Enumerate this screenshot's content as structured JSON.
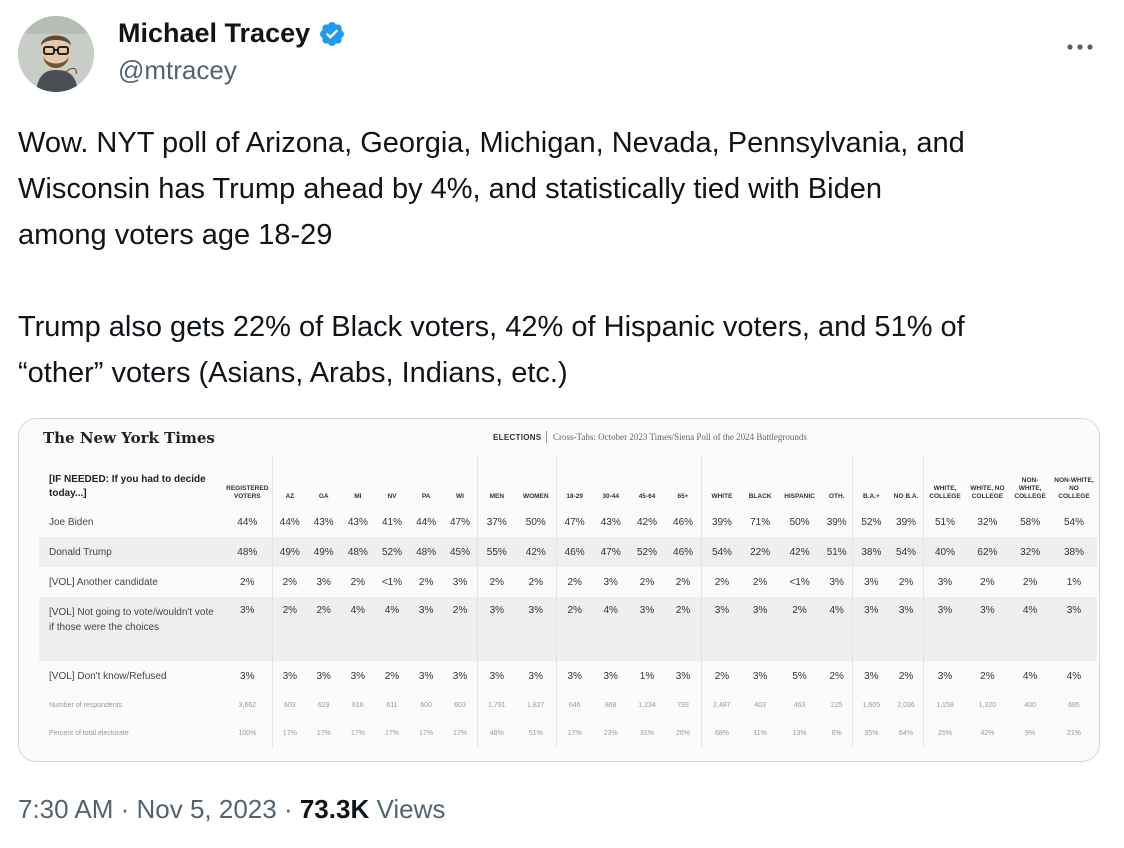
{
  "author": {
    "name": "Michael Tracey",
    "handle": "@mtracey",
    "avatar_icon": "avatar-illustration",
    "verified_icon": "verified-badge-icon",
    "verified_color": "#1d9bf0"
  },
  "more_icon": "more-options-icon",
  "tweet": {
    "line1": "Wow. NYT poll of Arizona, Georgia, Michigan, Nevada, Pennsylvania, and",
    "line2": "Wisconsin has Trump ahead by 4%, and statistically tied with Biden",
    "line3": "among voters age 18-29",
    "line4": "Trump also gets 22% of Black voters, 42% of Hispanic voters, and 51% of",
    "line5": "“other” voters (Asians, Arabs, Indians, etc.)"
  },
  "media": {
    "logo": "The New York Times",
    "section": "ELECTIONS",
    "title": "Cross-Tabs: October 2023 Times/Siena Poll of the 2024 Battlegrounds",
    "question": "[IF NEEDED: If you had to decide today...]",
    "columns": [
      "REGISTERED VOTERS",
      "AZ",
      "GA",
      "MI",
      "NV",
      "PA",
      "WI",
      "MEN",
      "WOMEN",
      "18-29",
      "30-44",
      "45-64",
      "65+",
      "WHITE",
      "BLACK",
      "HISPANIC",
      "OTH.",
      "B.A.+",
      "NO B.A.",
      "WHITE, COLLEGE",
      "WHITE, NO COLLEGE",
      "NON-WHITE, COLLEGE",
      "NON-WHITE, NO COLLEGE"
    ],
    "rows": [
      {
        "label": "Joe Biden",
        "values": [
          "44%",
          "44%",
          "43%",
          "43%",
          "41%",
          "44%",
          "47%",
          "37%",
          "50%",
          "47%",
          "43%",
          "42%",
          "46%",
          "39%",
          "71%",
          "50%",
          "39%",
          "52%",
          "39%",
          "51%",
          "32%",
          "58%",
          "54%"
        ]
      },
      {
        "label": "Donald Trump",
        "values": [
          "48%",
          "49%",
          "49%",
          "48%",
          "52%",
          "48%",
          "45%",
          "55%",
          "42%",
          "46%",
          "47%",
          "52%",
          "46%",
          "54%",
          "22%",
          "42%",
          "51%",
          "38%",
          "54%",
          "40%",
          "62%",
          "32%",
          "38%"
        ]
      },
      {
        "label": "[VOL] Another candidate",
        "values": [
          "2%",
          "2%",
          "3%",
          "2%",
          "<1%",
          "2%",
          "3%",
          "2%",
          "2%",
          "2%",
          "3%",
          "2%",
          "2%",
          "2%",
          "2%",
          "<1%",
          "3%",
          "3%",
          "2%",
          "3%",
          "2%",
          "2%",
          "1%"
        ]
      },
      {
        "label": "[VOL] Not going to vote/wouldn't vote if those were the choices",
        "values": [
          "3%",
          "2%",
          "2%",
          "4%",
          "4%",
          "3%",
          "2%",
          "3%",
          "3%",
          "2%",
          "4%",
          "3%",
          "2%",
          "3%",
          "3%",
          "2%",
          "4%",
          "3%",
          "3%",
          "3%",
          "3%",
          "4%",
          "3%"
        ]
      },
      {
        "label": "[VOL] Don't know/Refused",
        "values": [
          "3%",
          "3%",
          "3%",
          "3%",
          "2%",
          "3%",
          "3%",
          "3%",
          "3%",
          "3%",
          "3%",
          "1%",
          "3%",
          "2%",
          "3%",
          "5%",
          "2%",
          "3%",
          "2%",
          "3%",
          "2%",
          "4%",
          "4%"
        ]
      },
      {
        "label": "Number of respondents",
        "values": [
          "3,662",
          "603",
          "629",
          "616",
          "611",
          "600",
          "603",
          "1,791",
          "1,827",
          "646",
          "868",
          "1,234",
          "793",
          "2,487",
          "403",
          "463",
          "225",
          "1,605",
          "2,036",
          "1,158",
          "1,320",
          "400",
          "685"
        ]
      },
      {
        "label": "Percent of total electorate",
        "values": [
          "100%",
          "17%",
          "17%",
          "17%",
          "17%",
          "17%",
          "17%",
          "48%",
          "51%",
          "17%",
          "23%",
          "31%",
          "26%",
          "68%",
          "11%",
          "13%",
          "6%",
          "35%",
          "64%",
          "25%",
          "42%",
          "9%",
          "21%"
        ]
      }
    ]
  },
  "footer": {
    "time": "7:30 AM",
    "dot1": " · ",
    "date": "Nov 5, 2023",
    "dot2": " · ",
    "views_count": "73.3K",
    "views_label": " Views"
  }
}
